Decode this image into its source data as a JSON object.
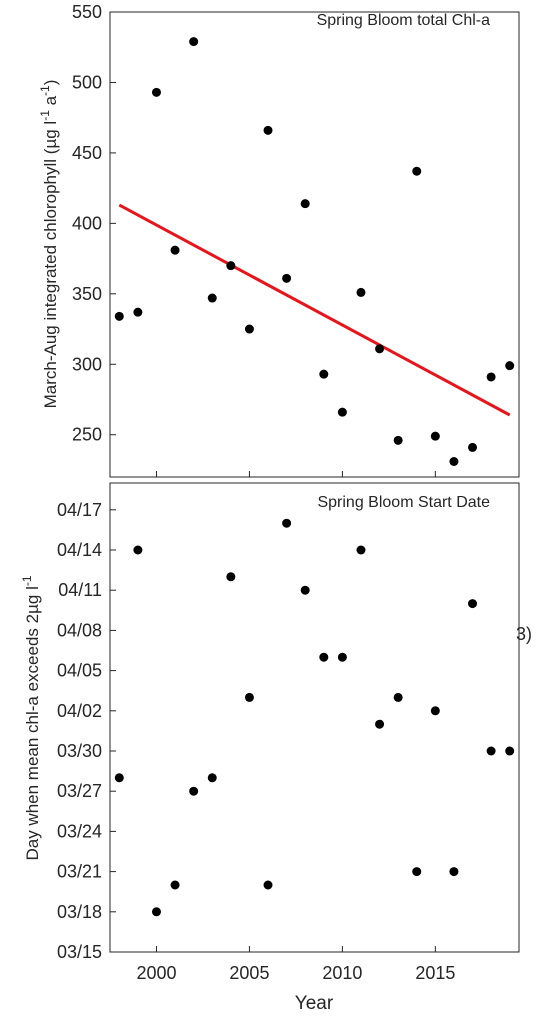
{
  "chart_data": [
    {
      "type": "scatter",
      "title": "Spring Bloom total Chl-a",
      "ylabel": "March-Aug integrated chlorophyll (µg l",
      "ylabel_sup1": "-1",
      "ylabel_mid": " a",
      "ylabel_sup2": "-1",
      "ylabel_end": ")",
      "xlabel": "",
      "xlim": [
        1997.5,
        2019.5
      ],
      "ylim": [
        220,
        550
      ],
      "yticks": [
        250,
        300,
        350,
        400,
        450,
        500,
        550
      ],
      "x": [
        1998,
        1999,
        2000,
        2001,
        2002,
        2003,
        2004,
        2005,
        2006,
        2007,
        2008,
        2009,
        2010,
        2011,
        2012,
        2013,
        2014,
        2015,
        2016,
        2017,
        2018,
        2019
      ],
      "y": [
        334,
        337,
        493,
        381,
        529,
        347,
        370,
        325,
        466,
        361,
        414,
        293,
        266,
        351,
        311,
        246,
        437,
        249,
        231,
        241,
        291,
        299
      ],
      "trend": {
        "x": [
          1998,
          2019
        ],
        "y": [
          413,
          264
        ],
        "color": "#e8141b"
      },
      "point_color": "#000000"
    },
    {
      "type": "scatter",
      "title": "Spring Bloom Start Date",
      "ylabel": "Day when mean chl-a exceeds 2µg l",
      "ylabel_sup1": "-1",
      "xlabel": "Year",
      "xlim": [
        1997.5,
        2019.5
      ],
      "xticks": [
        2000,
        2005,
        2010,
        2015
      ],
      "ylim": [
        "03/15",
        "04/19"
      ],
      "yticks": [
        "03/15",
        "03/18",
        "03/21",
        "03/24",
        "03/27",
        "03/30",
        "04/02",
        "04/05",
        "04/08",
        "04/11",
        "04/14",
        "04/17"
      ],
      "x": [
        1998,
        1999,
        2000,
        2001,
        2002,
        2003,
        2004,
        2005,
        2006,
        2007,
        2008,
        2009,
        2010,
        2011,
        2012,
        2013,
        2014,
        2015,
        2016,
        2017,
        2018,
        2019
      ],
      "y": [
        "03/28",
        "04/14",
        "03/18",
        "03/20",
        "03/27",
        "03/28",
        "04/12",
        "04/03",
        "03/20",
        "04/16",
        "04/11",
        "04/06",
        "04/06",
        "04/14",
        "04/01",
        "04/03",
        "03/21",
        "04/02",
        "03/21",
        "04/10",
        "03/30",
        "03/30"
      ],
      "point_color": "#000000"
    }
  ],
  "stray_label": "3)"
}
